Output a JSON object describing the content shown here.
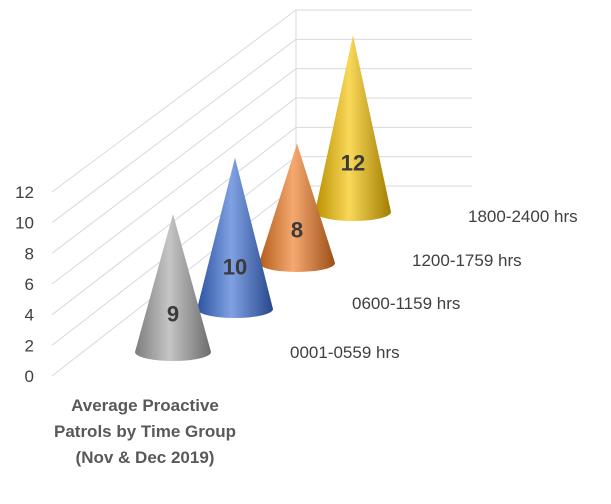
{
  "chart_data": {
    "type": "bar",
    "style": "3d-cone",
    "title": "Average Proactive Patrols by Time Group (Nov & Dec 2019)",
    "categories": [
      "0001-0559 hrs",
      "0600-1159 hrs",
      "1200-1759 hrs",
      "1800-2400 hrs"
    ],
    "values": [
      9,
      10,
      8,
      12
    ],
    "colors": [
      "#a6a6a6",
      "#3b6fd4",
      "#ef7a23",
      "#f6c100"
    ],
    "yticks": [
      0,
      2,
      4,
      6,
      8,
      10,
      12
    ],
    "ylim": [
      0,
      12
    ],
    "grid": true,
    "legend": "none"
  }
}
